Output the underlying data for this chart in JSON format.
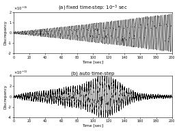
{
  "title_a": "(a) fixed time-step: $10^{-3}$ sec",
  "title_b": "(b) auto time-step",
  "xlabel": "Time [sec]",
  "ylabel": "Discrepancy",
  "xlim": [
    0,
    200
  ],
  "ylim_a": [
    -2e-15,
    2e-15
  ],
  "ylim_b": [
    -4e-11,
    4e-11
  ],
  "yticks_a": [
    -2e-15,
    -1e-15,
    0,
    1e-15,
    2e-15
  ],
  "ytick_labels_a": [
    "-2",
    "-1",
    "0",
    "1",
    "2"
  ],
  "yticks_b": [
    -4e-11,
    -2e-11,
    0,
    2e-11,
    4e-11
  ],
  "ytick_labels_b": [
    "-4",
    "-2",
    "0",
    "2",
    "4"
  ],
  "scale_label_a": "$\\times10^{-15}$",
  "scale_label_b": "$\\times10^{-11}$",
  "xticks": [
    0,
    20,
    40,
    60,
    80,
    100,
    120,
    140,
    160,
    180,
    200
  ],
  "background_color": "#ffffff",
  "line_color": "#000000"
}
